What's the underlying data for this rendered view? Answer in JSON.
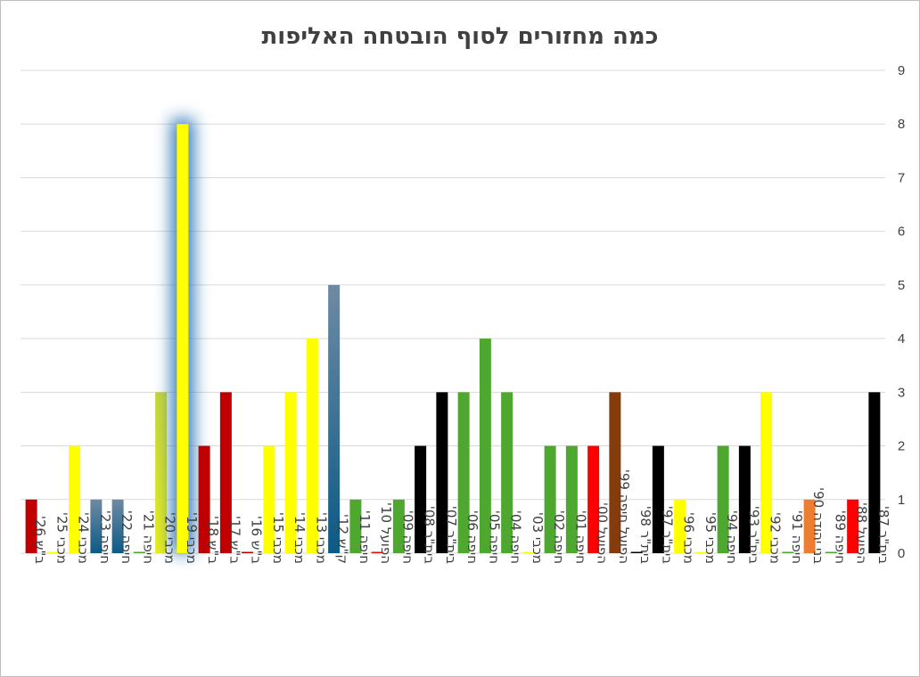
{
  "chart_data": {
    "type": "bar",
    "title": "כמה מחזורים לסוף הובטחה האליפות",
    "xlabel": "",
    "ylabel": "",
    "ylim": [
      0,
      9
    ],
    "yticks": [
      0,
      1,
      2,
      3,
      4,
      5,
      6,
      7,
      8,
      9
    ],
    "y_axis_side": "right",
    "grid": true,
    "legend": "none",
    "categories": [
      "ב\"ש 26'",
      "מכבי 25'",
      "מכבי 24'",
      "חיפה 23'",
      "חיפה 22'",
      "חיפה 21'",
      "מכבי 20'",
      "מכבי 19'",
      "ב\"ש 18'",
      "ב\"ש 17'",
      "ב\"ש 16'",
      "מכבי 15'",
      "מכבי 14'",
      "מכבי 13'",
      "ק\"ש 12'",
      "חיפה 11'",
      "הפועל 10'",
      "חיפה 09'",
      "בית\"ר 08'",
      "בית\"ר 07'",
      "חיפה 06'",
      "חיפה 05'",
      "חיפה 04'",
      "מכבי 03'",
      "חיפה 02'",
      "חיפה 01'",
      "הפועל 00'",
      "הפועל חיפה 99'",
      "בית\"ר 98'",
      "בית\"ר 97'",
      "מכבי 96'",
      "מכבי 95'",
      "חיפה 94'",
      "בית\"ר 93'",
      "מכבי 92'",
      "חיפה 91'",
      "בני יהודה 90'",
      "חיפה 89'",
      "הפועל 88'",
      "בית\"ר 87'"
    ],
    "values": [
      1,
      0,
      2,
      1,
      1,
      0,
      3,
      8,
      2,
      3,
      0,
      2,
      3,
      4,
      5,
      1,
      0,
      1,
      2,
      3,
      3,
      4,
      3,
      0,
      2,
      2,
      2,
      3,
      0,
      2,
      1,
      0,
      2,
      2,
      3,
      0,
      1,
      0,
      1,
      3
    ],
    "bar_colors": [
      "#c00000",
      "#ffff00",
      "#ffff00",
      "#1f5c86",
      "#1f5c86",
      "#4ea72e",
      "#c8d62e",
      "#ffff00",
      "#c00000",
      "#c00000",
      "#c00000",
      "#ffff00",
      "#ffff00",
      "#ffff00",
      "#1f5c86",
      "#4ea72e",
      "#ff0000",
      "#4ea72e",
      "#000000",
      "#000000",
      "#4ea72e",
      "#4ea72e",
      "#4ea72e",
      "#ffff00",
      "#4ea72e",
      "#4ea72e",
      "#ff0000",
      "#843c0c",
      "#000000",
      "#000000",
      "#ffff00",
      "#ffff00",
      "#4ea72e",
      "#000000",
      "#ffff00",
      "#4ea72e",
      "#ed7d31",
      "#4ea72e",
      "#ff0000",
      "#000000"
    ],
    "highlighted_category": "מכבי 19'",
    "highlight_glow_color": "#2e75b6"
  }
}
